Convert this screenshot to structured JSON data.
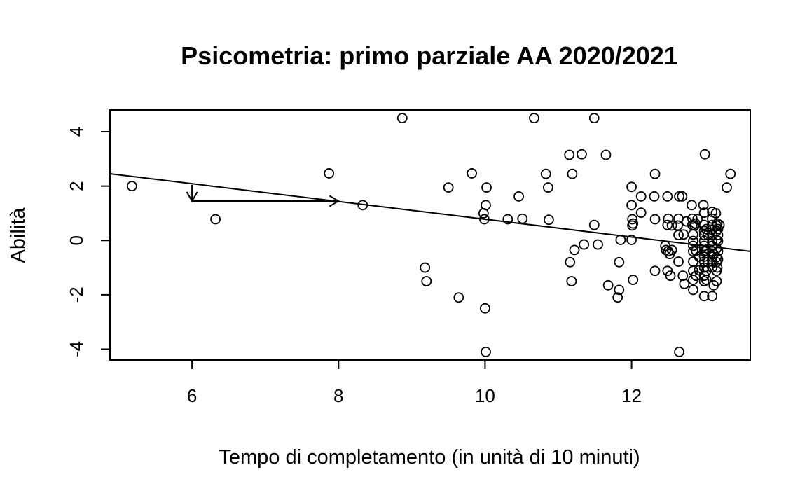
{
  "chart_data": {
    "type": "scatter",
    "title": "Psicometria: primo parziale AA 2020/2021",
    "xlabel": "Tempo di completamento (in unità di 10 minuti)",
    "ylabel": "Abilità",
    "xlim": [
      4.88,
      13.62
    ],
    "ylim": [
      -4.4,
      4.8
    ],
    "xticks": [
      6,
      8,
      10,
      12
    ],
    "xtick_labels": [
      "6",
      "8",
      "10",
      "12"
    ],
    "yticks": [
      -4,
      -2,
      0,
      2,
      4
    ],
    "ytick_labels": [
      "-4",
      "-2",
      "0",
      "2",
      "4"
    ],
    "grid": false,
    "regression_line": {
      "intercept": 4.05,
      "slope": -0.327
    },
    "arrows": [
      {
        "from": [
          6.0,
          2.05
        ],
        "to": [
          6.0,
          1.45
        ],
        "direction": "down"
      },
      {
        "from": [
          6.0,
          1.45
        ],
        "to": [
          8.0,
          1.45
        ],
        "direction": "right"
      }
    ],
    "points": [
      [
        5.18,
        2.0
      ],
      [
        6.32,
        0.78
      ],
      [
        7.87,
        2.47
      ],
      [
        8.33,
        1.3
      ],
      [
        8.87,
        4.5
      ],
      [
        9.18,
        -1.0
      ],
      [
        9.2,
        -1.5
      ],
      [
        9.5,
        1.95
      ],
      [
        9.64,
        -2.1
      ],
      [
        9.82,
        2.47
      ],
      [
        9.98,
        1.0
      ],
      [
        9.99,
        0.78
      ],
      [
        10.01,
        1.3
      ],
      [
        10.02,
        1.95
      ],
      [
        10.0,
        -2.5
      ],
      [
        10.01,
        -4.1
      ],
      [
        10.31,
        0.78
      ],
      [
        10.46,
        1.62
      ],
      [
        10.51,
        0.8
      ],
      [
        10.67,
        4.5
      ],
      [
        10.83,
        2.45
      ],
      [
        10.86,
        1.95
      ],
      [
        10.87,
        0.76
      ],
      [
        11.15,
        3.15
      ],
      [
        11.16,
        -0.8
      ],
      [
        11.18,
        -1.5
      ],
      [
        11.19,
        2.45
      ],
      [
        11.22,
        -0.35
      ],
      [
        11.32,
        3.17
      ],
      [
        11.35,
        -0.15
      ],
      [
        11.49,
        4.5
      ],
      [
        11.49,
        0.57
      ],
      [
        11.54,
        -0.15
      ],
      [
        11.65,
        3.15
      ],
      [
        11.68,
        -1.65
      ],
      [
        11.81,
        -2.1
      ],
      [
        11.83,
        -1.82
      ],
      [
        11.83,
        -0.8
      ],
      [
        11.85,
        0.02
      ],
      [
        12.0,
        1.97
      ],
      [
        12.0,
        1.3
      ],
      [
        12.01,
        0.78
      ],
      [
        12.01,
        0.55
      ],
      [
        12.02,
        0.62
      ],
      [
        12.0,
        0.02
      ],
      [
        12.02,
        -1.45
      ],
      [
        12.13,
        1.62
      ],
      [
        12.13,
        1.02
      ],
      [
        12.31,
        1.62
      ],
      [
        12.32,
        2.45
      ],
      [
        12.32,
        0.78
      ],
      [
        12.32,
        -1.12
      ],
      [
        12.46,
        -0.2
      ],
      [
        12.47,
        -0.35
      ],
      [
        12.49,
        1.62
      ],
      [
        12.49,
        0.57
      ],
      [
        12.5,
        0.8
      ],
      [
        12.5,
        -0.4
      ],
      [
        12.52,
        -0.5
      ],
      [
        12.53,
        -1.3
      ],
      [
        12.55,
        0.55
      ],
      [
        12.55,
        -0.35
      ],
      [
        12.49,
        -1.12
      ],
      [
        12.63,
        0.55
      ],
      [
        12.64,
        0.8
      ],
      [
        12.64,
        0.2
      ],
      [
        12.64,
        -0.78
      ],
      [
        12.65,
        1.62
      ],
      [
        12.65,
        -4.1
      ],
      [
        12.69,
        1.62
      ],
      [
        12.7,
        -1.3
      ],
      [
        12.71,
        0.22
      ],
      [
        12.72,
        -1.6
      ],
      [
        12.75,
        0.7
      ],
      [
        12.82,
        1.3
      ],
      [
        12.83,
        0.8
      ],
      [
        12.83,
        0.57
      ],
      [
        12.84,
        0.22
      ],
      [
        12.84,
        -0.02
      ],
      [
        12.84,
        -0.2
      ],
      [
        12.84,
        -0.4
      ],
      [
        12.84,
        -0.78
      ],
      [
        12.84,
        -1.12
      ],
      [
        12.84,
        -1.45
      ],
      [
        12.84,
        -1.82
      ],
      [
        12.86,
        0.55
      ],
      [
        12.87,
        0.62
      ],
      [
        12.88,
        -0.38
      ],
      [
        12.88,
        -1.3
      ],
      [
        12.9,
        0.78
      ],
      [
        12.92,
        -0.6
      ],
      [
        12.92,
        -1.1
      ],
      [
        13.0,
        3.17
      ],
      [
        12.98,
        1.3
      ],
      [
        12.99,
        1.02
      ],
      [
        12.99,
        0.57
      ],
      [
        12.99,
        0.35
      ],
      [
        12.99,
        0.2
      ],
      [
        12.99,
        -0.02
      ],
      [
        12.99,
        -0.2
      ],
      [
        12.99,
        -0.4
      ],
      [
        12.99,
        -0.6
      ],
      [
        12.99,
        -0.78
      ],
      [
        12.99,
        -1.0
      ],
      [
        12.99,
        -1.3
      ],
      [
        12.99,
        -1.5
      ],
      [
        12.99,
        -2.05
      ],
      [
        13.02,
        0.42
      ],
      [
        13.02,
        -0.38
      ],
      [
        13.02,
        -1.12
      ],
      [
        13.02,
        -1.45
      ],
      [
        13.04,
        0.2
      ],
      [
        13.04,
        -0.8
      ],
      [
        13.1,
        1.05
      ],
      [
        13.1,
        0.8
      ],
      [
        13.1,
        0.57
      ],
      [
        13.1,
        0.4
      ],
      [
        13.1,
        0.2
      ],
      [
        13.1,
        -0.02
      ],
      [
        13.1,
        -0.2
      ],
      [
        13.1,
        -0.4
      ],
      [
        13.1,
        -0.6
      ],
      [
        13.1,
        -0.78
      ],
      [
        13.1,
        -1.0
      ],
      [
        13.1,
        -2.05
      ],
      [
        13.12,
        -1.65
      ],
      [
        13.12,
        -0.5
      ],
      [
        13.15,
        1.0
      ],
      [
        13.16,
        0.55
      ],
      [
        13.16,
        0.35
      ],
      [
        13.16,
        0.02
      ],
      [
        13.16,
        -0.3
      ],
      [
        13.16,
        -0.62
      ],
      [
        13.16,
        -0.8
      ],
      [
        13.16,
        -1.12
      ],
      [
        13.16,
        -1.5
      ],
      [
        13.17,
        0.62
      ],
      [
        13.17,
        -1.0
      ],
      [
        13.18,
        0.42
      ],
      [
        13.18,
        0.2
      ],
      [
        13.18,
        -0.02
      ],
      [
        13.18,
        -0.4
      ],
      [
        13.18,
        -0.7
      ],
      [
        13.2,
        0.57
      ],
      [
        13.3,
        1.95
      ],
      [
        13.35,
        2.45
      ]
    ]
  }
}
